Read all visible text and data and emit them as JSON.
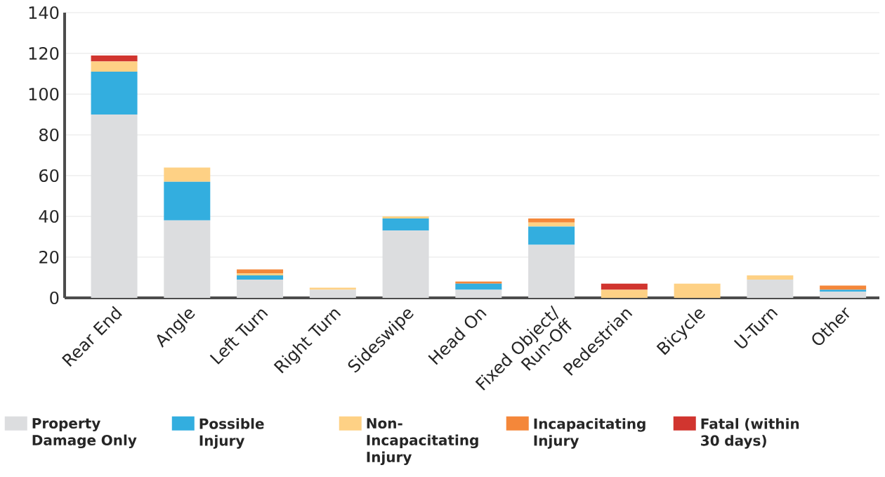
{
  "chart_data": {
    "type": "bar",
    "stacked": true,
    "categories": [
      "Rear End",
      "Angle",
      "Left Turn",
      "Right Turn",
      "Sideswipe",
      "Head On",
      "Fixed Object/ Run-Off",
      "Pedestrian",
      "Bicycle",
      "U-Turn",
      "Other"
    ],
    "series": [
      {
        "name": "Property Damage Only",
        "color": "#dcdddf",
        "values": [
          90,
          38,
          9,
          4,
          33,
          4,
          26,
          0,
          0,
          9,
          3
        ]
      },
      {
        "name": "Possible Injury",
        "color": "#33aedf",
        "values": [
          21,
          19,
          2,
          0,
          6,
          3,
          9,
          0,
          0,
          0,
          1
        ]
      },
      {
        "name": "Non-Incapacitating Injury",
        "color": "#fed185",
        "values": [
          5,
          7,
          1,
          1,
          1,
          0,
          2,
          4,
          7,
          2,
          0
        ]
      },
      {
        "name": "Incapacitating Injury",
        "color": "#f4873a",
        "values": [
          0,
          0,
          2,
          0,
          0,
          1,
          2,
          0,
          0,
          0,
          2
        ]
      },
      {
        "name": "Fatal (within 30 days)",
        "color": "#d1352f",
        "values": [
          3,
          0,
          0,
          0,
          0,
          0,
          0,
          3,
          0,
          0,
          0
        ]
      }
    ],
    "ylim": [
      0,
      140
    ],
    "yticks": [
      0,
      20,
      40,
      60,
      80,
      100,
      120,
      140
    ],
    "grid": "y",
    "legend": "bottom"
  }
}
